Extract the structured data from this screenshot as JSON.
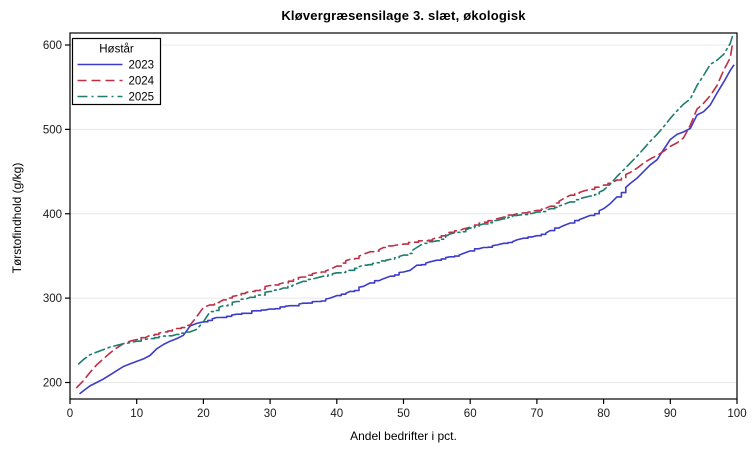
{
  "chart_data": {
    "type": "line",
    "title": "Kløvergræsensilage 3. slæt, økologisk",
    "xlabel": "Andel bedrifter i pct.",
    "ylabel": "Tørstofindhold (g/kg)",
    "xlim": [
      0,
      100
    ],
    "ylim": [
      180,
      614
    ],
    "x_ticks": [
      0,
      10,
      20,
      30,
      40,
      50,
      60,
      70,
      80,
      90,
      100
    ],
    "y_ticks": [
      200,
      300,
      400,
      500,
      600
    ],
    "grid": "horizontal-only",
    "grid_color": "#e8e8e8",
    "frame_color": "#000000",
    "legend_position": "top-left-inside",
    "legend_title": "Høstår",
    "series": [
      {
        "name": "2023",
        "color": "#3d3cc9",
        "dash": "solid",
        "points": [
          [
            1.5,
            187
          ],
          [
            2,
            190
          ],
          [
            3,
            196
          ],
          [
            4,
            200
          ],
          [
            5,
            204
          ],
          [
            6,
            209
          ],
          [
            7,
            214
          ],
          [
            8,
            219
          ],
          [
            9,
            222
          ],
          [
            10,
            225
          ],
          [
            11,
            228
          ],
          [
            12,
            232
          ],
          [
            13,
            240
          ],
          [
            14,
            245
          ],
          [
            15,
            249
          ],
          [
            16,
            252
          ],
          [
            17,
            256
          ],
          [
            18,
            267
          ],
          [
            19,
            270
          ],
          [
            20,
            272
          ],
          [
            22,
            277
          ],
          [
            25,
            281
          ],
          [
            28,
            285
          ],
          [
            30,
            287
          ],
          [
            33,
            291
          ],
          [
            35,
            294
          ],
          [
            37,
            296
          ],
          [
            39,
            300
          ],
          [
            40,
            303
          ],
          [
            42,
            308
          ],
          [
            44,
            314
          ],
          [
            45,
            318
          ],
          [
            47,
            323
          ],
          [
            48,
            326
          ],
          [
            50,
            331
          ],
          [
            51,
            333
          ],
          [
            52,
            339
          ],
          [
            54,
            343
          ],
          [
            55,
            345
          ],
          [
            57,
            349
          ],
          [
            59,
            353
          ],
          [
            60,
            356
          ],
          [
            62,
            360
          ],
          [
            64,
            363
          ],
          [
            65,
            365
          ],
          [
            67,
            369
          ],
          [
            68,
            371
          ],
          [
            70,
            374
          ],
          [
            72,
            380
          ],
          [
            74,
            386
          ],
          [
            75,
            389
          ],
          [
            77,
            395
          ],
          [
            78,
            398
          ],
          [
            80,
            406
          ],
          [
            81,
            412
          ],
          [
            82,
            420
          ],
          [
            84,
            436
          ],
          [
            85,
            442
          ],
          [
            86,
            450
          ],
          [
            87,
            458
          ],
          [
            88,
            464
          ],
          [
            89,
            476
          ],
          [
            90,
            488
          ],
          [
            91,
            494
          ],
          [
            92,
            497
          ],
          [
            93,
            501
          ],
          [
            94,
            517
          ],
          [
            95,
            521
          ],
          [
            96,
            529
          ],
          [
            97,
            543
          ],
          [
            98,
            556
          ],
          [
            99,
            570
          ],
          [
            99.5,
            576
          ]
        ]
      },
      {
        "name": "2024",
        "color": "#bf2e45",
        "dash": "dash",
        "points": [
          [
            1,
            194
          ],
          [
            2,
            202
          ],
          [
            3,
            212
          ],
          [
            4,
            221
          ],
          [
            5,
            228
          ],
          [
            6,
            235
          ],
          [
            7,
            241
          ],
          [
            8,
            246
          ],
          [
            9,
            249
          ],
          [
            10,
            251
          ],
          [
            12,
            256
          ],
          [
            14,
            260
          ],
          [
            16,
            264
          ],
          [
            18,
            268
          ],
          [
            19,
            278
          ],
          [
            20,
            289
          ],
          [
            21,
            292
          ],
          [
            23,
            298
          ],
          [
            25,
            303
          ],
          [
            27,
            308
          ],
          [
            30,
            315
          ],
          [
            32,
            318
          ],
          [
            35,
            325
          ],
          [
            37,
            330
          ],
          [
            39,
            334
          ],
          [
            40,
            338
          ],
          [
            42,
            346
          ],
          [
            44,
            352
          ],
          [
            45,
            355
          ],
          [
            47,
            360
          ],
          [
            49,
            363
          ],
          [
            50,
            364
          ],
          [
            53,
            368
          ],
          [
            55,
            372
          ],
          [
            57,
            378
          ],
          [
            59,
            382
          ],
          [
            60,
            384
          ],
          [
            62,
            390
          ],
          [
            64,
            394
          ],
          [
            65,
            396
          ],
          [
            67,
            400
          ],
          [
            68,
            401
          ],
          [
            70,
            404
          ],
          [
            72,
            409
          ],
          [
            74,
            418
          ],
          [
            75,
            422
          ],
          [
            77,
            427
          ],
          [
            78,
            429
          ],
          [
            80,
            434
          ],
          [
            82,
            440
          ],
          [
            84,
            449
          ],
          [
            85,
            454
          ],
          [
            86,
            460
          ],
          [
            87,
            465
          ],
          [
            88,
            469
          ],
          [
            89,
            474
          ],
          [
            90,
            480
          ],
          [
            91,
            484
          ],
          [
            92,
            490
          ],
          [
            93,
            505
          ],
          [
            94,
            524
          ],
          [
            95,
            531
          ],
          [
            96,
            540
          ],
          [
            97,
            552
          ],
          [
            98,
            570
          ],
          [
            99,
            585
          ],
          [
            99.3,
            600
          ]
        ]
      },
      {
        "name": "2025",
        "color": "#1d7d6e",
        "dash": "dashdot",
        "points": [
          [
            1.3,
            222
          ],
          [
            2,
            227
          ],
          [
            3,
            233
          ],
          [
            4,
            236
          ],
          [
            5,
            239
          ],
          [
            6,
            242
          ],
          [
            7,
            244
          ],
          [
            8,
            246
          ],
          [
            9,
            247
          ],
          [
            10,
            249
          ],
          [
            12,
            252
          ],
          [
            14,
            255
          ],
          [
            16,
            257
          ],
          [
            18,
            260
          ],
          [
            19,
            263
          ],
          [
            20,
            272
          ],
          [
            21,
            284
          ],
          [
            23,
            291
          ],
          [
            25,
            296
          ],
          [
            27,
            301
          ],
          [
            30,
            308
          ],
          [
            32,
            312
          ],
          [
            34,
            317
          ],
          [
            35,
            320
          ],
          [
            37,
            324
          ],
          [
            38,
            326
          ],
          [
            40,
            330
          ],
          [
            42,
            333
          ],
          [
            44,
            339
          ],
          [
            46,
            342
          ],
          [
            48,
            346
          ],
          [
            50,
            351
          ],
          [
            52,
            360
          ],
          [
            53,
            365
          ],
          [
            55,
            368
          ],
          [
            57,
            376
          ],
          [
            58,
            378
          ],
          [
            60,
            383
          ],
          [
            62,
            388
          ],
          [
            64,
            392
          ],
          [
            65,
            394
          ],
          [
            67,
            398
          ],
          [
            68,
            399
          ],
          [
            70,
            402
          ],
          [
            72,
            406
          ],
          [
            74,
            411
          ],
          [
            75,
            414
          ],
          [
            77,
            419
          ],
          [
            78,
            421
          ],
          [
            80,
            428
          ],
          [
            81,
            435
          ],
          [
            82,
            444
          ],
          [
            83,
            452
          ],
          [
            84,
            460
          ],
          [
            85,
            468
          ],
          [
            86,
            477
          ],
          [
            87,
            486
          ],
          [
            88,
            494
          ],
          [
            89,
            503
          ],
          [
            90,
            513
          ],
          [
            91,
            522
          ],
          [
            92,
            530
          ],
          [
            93,
            536
          ],
          [
            94,
            552
          ],
          [
            95,
            564
          ],
          [
            96,
            577
          ],
          [
            97,
            582
          ],
          [
            98,
            589
          ],
          [
            99,
            602
          ],
          [
            99.3,
            610
          ]
        ]
      }
    ]
  }
}
